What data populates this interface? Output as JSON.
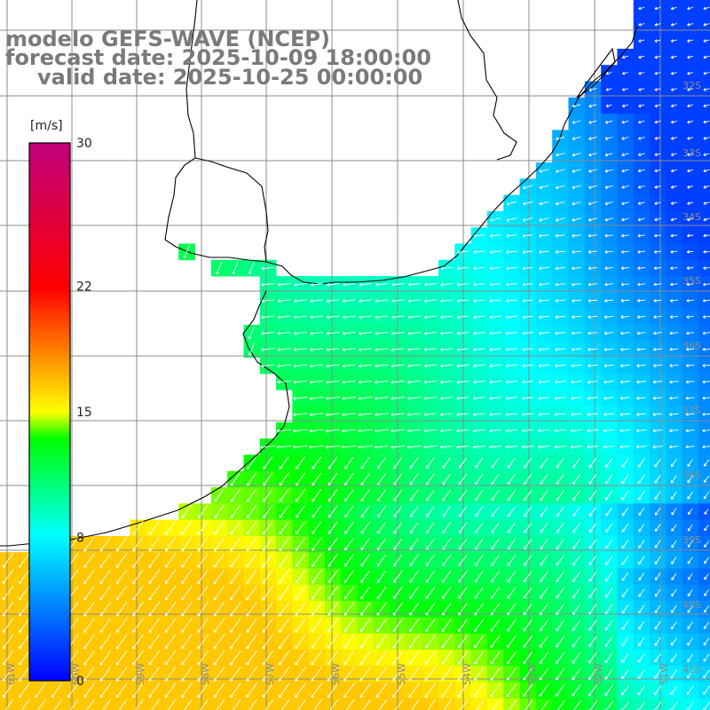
{
  "title": {
    "line1": "modelo GEFS-WAVE (NCEP)",
    "line2": "forecast date: 2025-10-09 18:00:00",
    "line3": "valid date: 2025-10-25 00:00:00"
  },
  "colorbar": {
    "units": "[m/s]",
    "ticks": [
      "30",
      "22",
      "15",
      "8",
      "0"
    ],
    "tick_values": [
      30,
      22,
      15,
      8,
      0
    ],
    "min": 0,
    "max": 30,
    "colors": [
      "#0000ff",
      "#00ffff",
      "#00ff00",
      "#ffff00",
      "#ff0000",
      "#c0007c"
    ]
  },
  "lat_labels": [
    "32S",
    "33S",
    "34S",
    "35S",
    "36S",
    "37S",
    "38S",
    "39S",
    "40S",
    "41S"
  ],
  "lon_labels": [
    "61W",
    "60W",
    "59W",
    "58W",
    "57W",
    "56W",
    "55W",
    "54W",
    "53W",
    "52W",
    "51W"
  ],
  "colors": {
    "land": "#ffffff",
    "grid": "#8c8c8c",
    "coast": "#000000",
    "arrow": "#ffffff"
  }
}
